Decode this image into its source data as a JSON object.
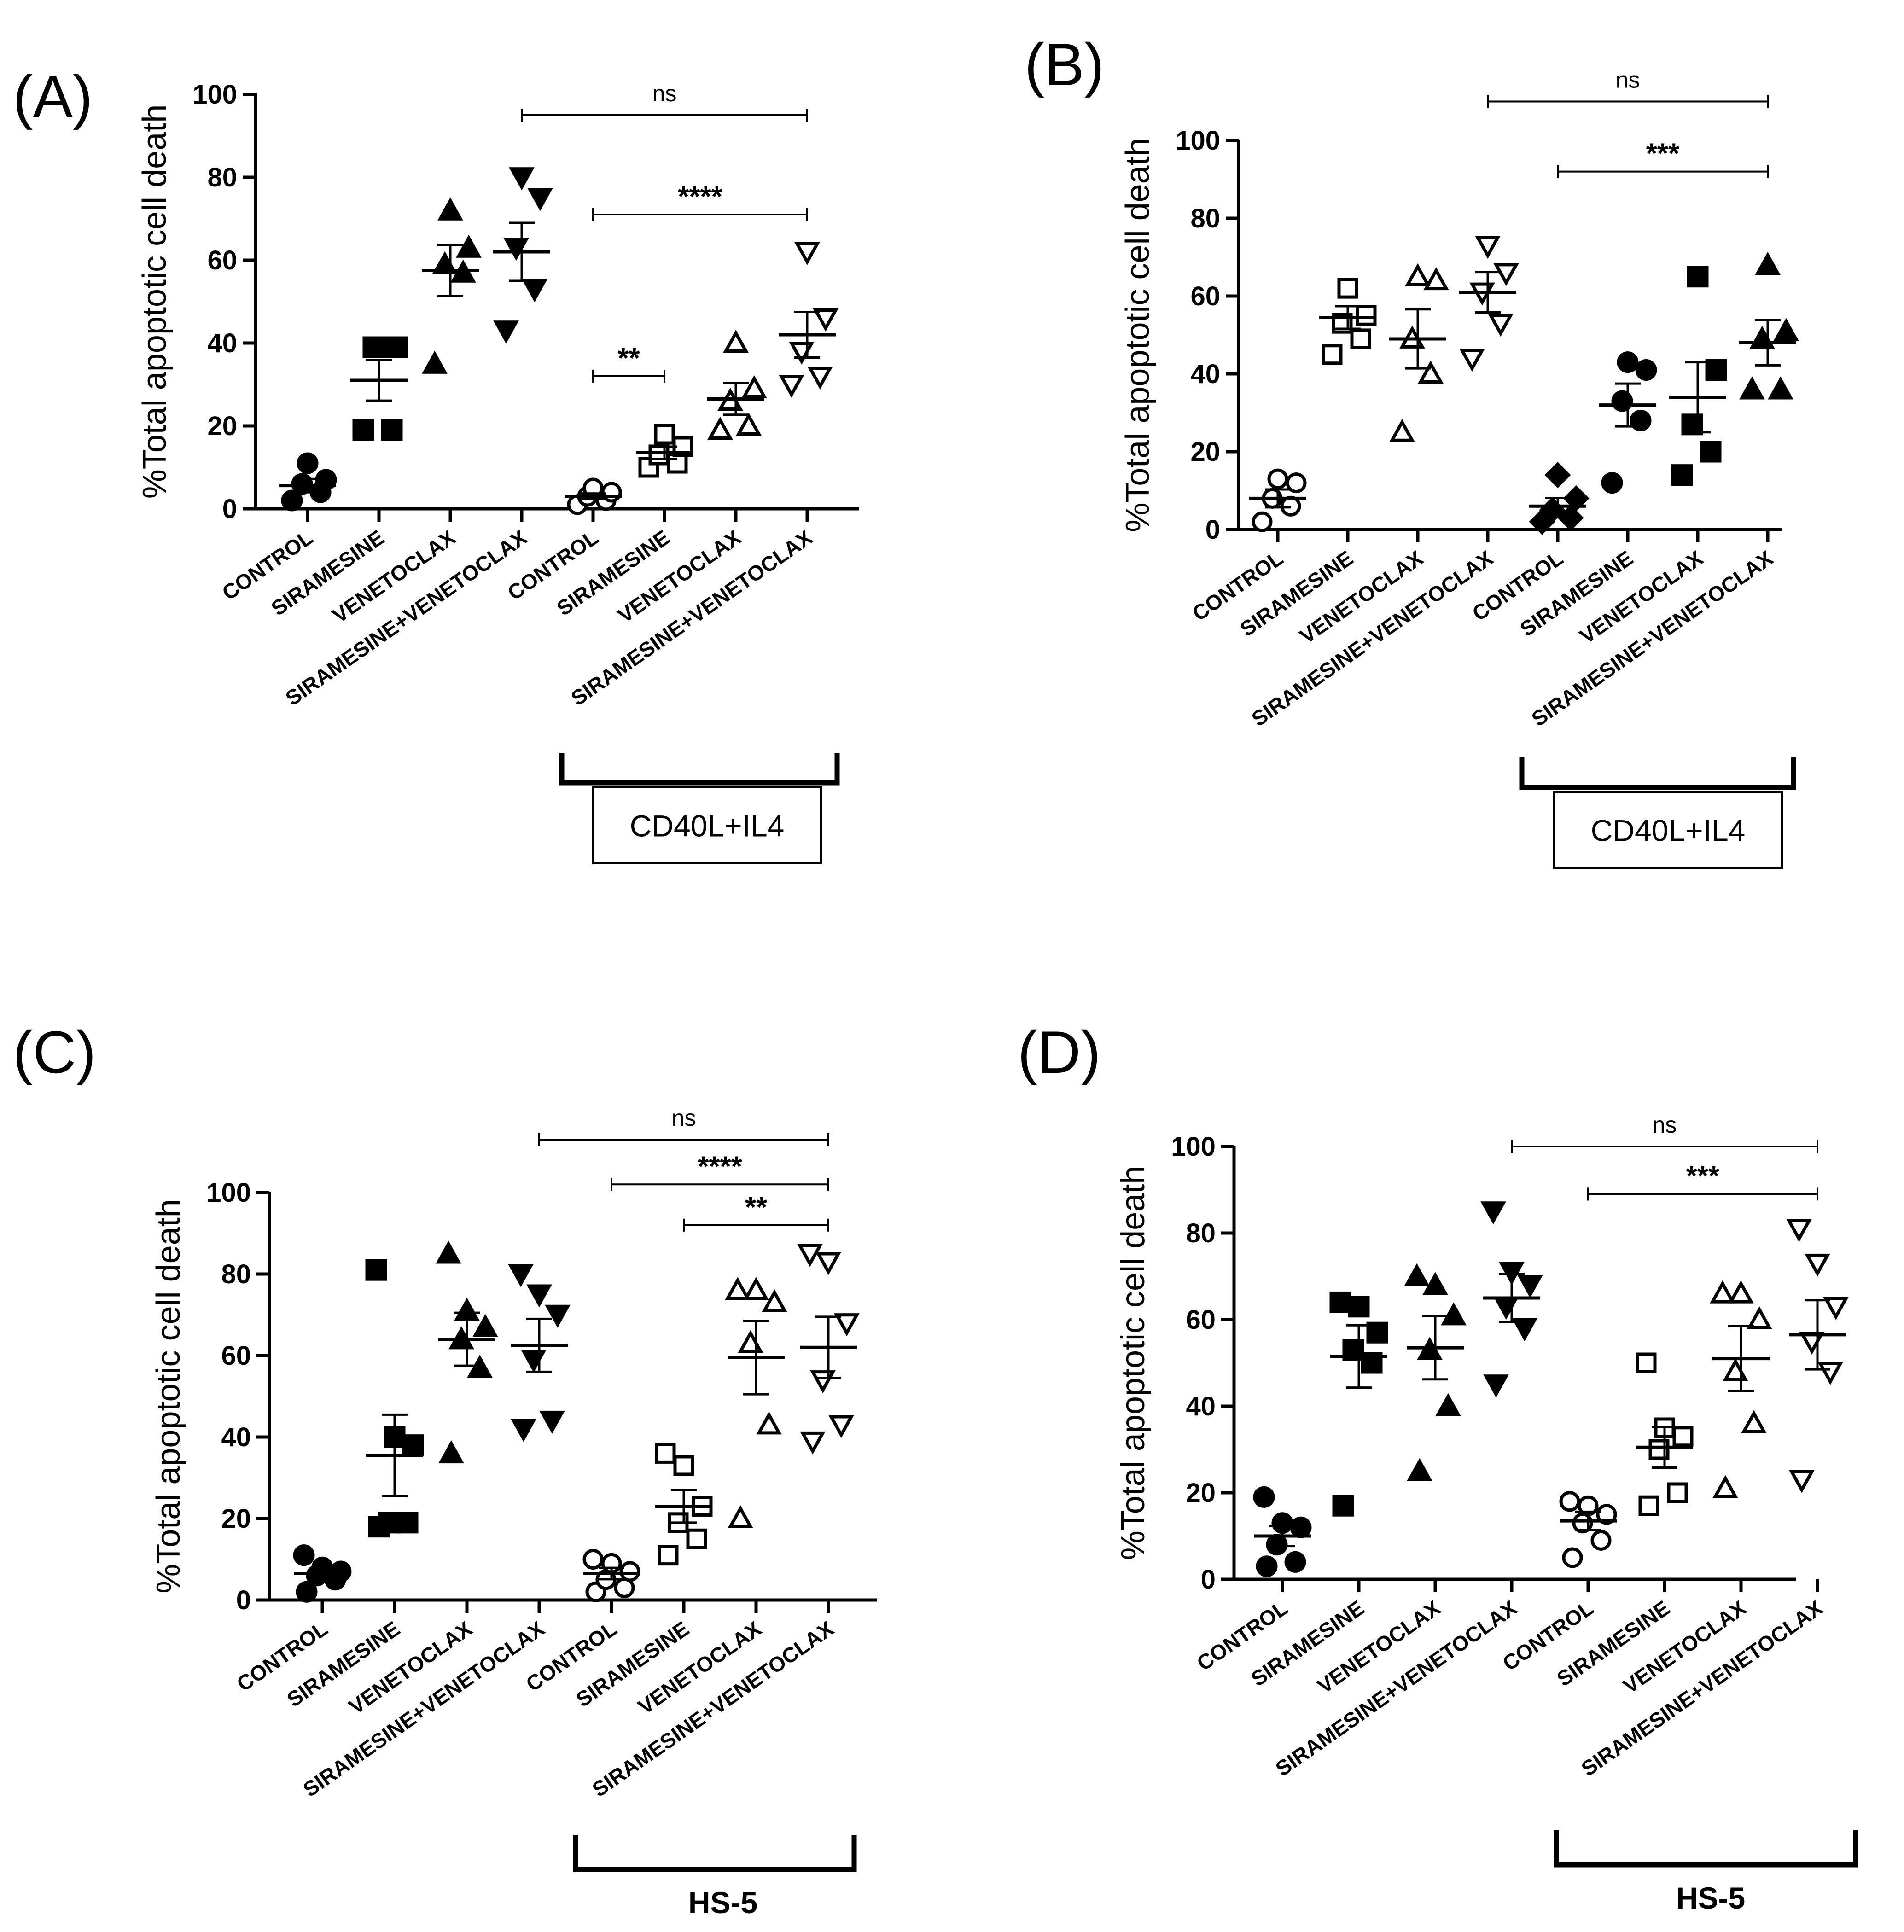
{
  "chart_data": [
    {
      "panel": "(A)",
      "type": "scatter",
      "ylabel": "%Total apoptotic cell death",
      "ylim": [
        0,
        100
      ],
      "yticks": [
        "0",
        "20",
        "40",
        "60",
        "80",
        "100"
      ],
      "categories": [
        "CONTROL",
        "SIRAMESINE",
        "VENETOCLAX",
        "SIRAMESINE+VENETOCLAX",
        "CONTROL",
        "SIRAMESINE",
        "VENETOCLAX",
        "SIRAMESINE+VENETOCLAX"
      ],
      "series": [
        {
          "marker": "circle-filled",
          "values": [
            2,
            4,
            6,
            7,
            11
          ],
          "mean": 5.6,
          "sem": 1.6
        },
        {
          "marker": "square-filled",
          "values": [
            19,
            19,
            39,
            39,
            39
          ],
          "mean": 31,
          "sem": 4.9
        },
        {
          "marker": "triangle-up-filled",
          "values": [
            35,
            57,
            59,
            63,
            72
          ],
          "mean": 57.5,
          "sem": 6.2
        },
        {
          "marker": "triangle-down-filled",
          "values": [
            43,
            53,
            63,
            75,
            80
          ],
          "mean": 62,
          "sem": 7
        },
        {
          "marker": "circle-open",
          "values": [
            1,
            2,
            3,
            4,
            5
          ],
          "mean": 3,
          "sem": 0.7
        },
        {
          "marker": "square-open",
          "values": [
            10,
            11,
            13,
            15,
            18
          ],
          "mean": 13.5,
          "sem": 1.5
        },
        {
          "marker": "triangle-up-open",
          "values": [
            19,
            20,
            26,
            29,
            40
          ],
          "mean": 26.5,
          "sem": 3.8
        },
        {
          "marker": "triangle-down-open",
          "values": [
            30,
            32,
            38,
            46,
            62
          ],
          "mean": 42,
          "sem": 5.5
        }
      ],
      "comparisons": [
        {
          "from": 3,
          "to": 7,
          "label": "ns",
          "y": 95
        },
        {
          "from": 4,
          "to": 7,
          "label": "****",
          "y": 71
        },
        {
          "from": 4,
          "to": 5,
          "label": "**",
          "y": 32
        }
      ],
      "group": {
        "label": "CD40L+IL4",
        "from": 4,
        "to": 7,
        "boxed": true
      }
    },
    {
      "panel": "(B)",
      "type": "scatter",
      "ylabel": "%Total apoptotic cell death",
      "ylim": [
        0,
        100
      ],
      "yticks": [
        "0",
        "20",
        "40",
        "60",
        "80",
        "100"
      ],
      "categories": [
        "CONTROL",
        "SIRAMESINE",
        "VENETOCLAX",
        "SIRAMESINE+VENETOCLAX",
        "CONTROL",
        "SIRAMESINE",
        "VENETOCLAX",
        "SIRAMESINE+VENETOCLAX"
      ],
      "series": [
        {
          "marker": "circle-open",
          "values": [
            2,
            6,
            8,
            12,
            13
          ],
          "mean": 8,
          "sem": 2.3
        },
        {
          "marker": "square-open",
          "values": [
            45,
            49,
            53,
            55,
            62
          ],
          "mean": 54.5,
          "sem": 2.9
        },
        {
          "marker": "triangle-up-open",
          "values": [
            25,
            40,
            49,
            64,
            65
          ],
          "mean": 49,
          "sem": 7.6
        },
        {
          "marker": "triangle-down-open",
          "values": [
            44,
            53,
            61,
            66,
            73
          ],
          "mean": 61,
          "sem": 5.2
        },
        {
          "marker": "diamond-filled",
          "values": [
            2,
            3,
            5,
            8,
            14
          ],
          "mean": 6,
          "sem": 2.1
        },
        {
          "marker": "circle-filled",
          "values": [
            12,
            28,
            33,
            41,
            43
          ],
          "mean": 32,
          "sem": 5.5
        },
        {
          "marker": "square-filled",
          "values": [
            14,
            20,
            27,
            41,
            65
          ],
          "mean": 34,
          "sem": 9
        },
        {
          "marker": "triangle-up-filled",
          "values": [
            36,
            36,
            49,
            51,
            68
          ],
          "mean": 48,
          "sem": 5.8
        }
      ],
      "comparisons": [
        {
          "from": 3,
          "to": 7,
          "label": "ns",
          "y": 110
        },
        {
          "from": 4,
          "to": 7,
          "label": "***",
          "y": 92
        }
      ],
      "group": {
        "label": "CD40L+IL4",
        "from": 4,
        "to": 7,
        "boxed": true
      }
    },
    {
      "panel": "(C)",
      "type": "scatter",
      "ylabel": "%Total apoptotic cell death",
      "ylim": [
        0,
        100
      ],
      "yticks": [
        "0",
        "20",
        "40",
        "60",
        "80",
        "100"
      ],
      "categories": [
        "CONTROL",
        "SIRAMESINE",
        "VENETOCLAX",
        "SIRAMESINE+VENETOCLAX",
        "CONTROL",
        "SIRAMESINE",
        "VENETOCLAX",
        "SIRAMESINE+VENETOCLAX"
      ],
      "series": [
        {
          "marker": "circle-filled",
          "values": [
            2,
            5,
            6,
            7,
            8,
            11
          ],
          "mean": 6.5,
          "sem": 1.2
        },
        {
          "marker": "square-filled",
          "values": [
            18,
            19,
            19,
            38,
            40,
            81
          ],
          "mean": 35.5,
          "sem": 10
        },
        {
          "marker": "triangle-up-filled",
          "values": [
            36,
            57,
            64,
            67,
            71,
            85
          ],
          "mean": 64,
          "sem": 6.5
        },
        {
          "marker": "triangle-down-filled",
          "values": [
            42,
            44,
            59,
            70,
            75,
            80
          ],
          "mean": 62.5,
          "sem": 6.5
        },
        {
          "marker": "circle-open",
          "values": [
            2,
            3,
            5,
            7,
            9,
            10
          ],
          "mean": 6.5,
          "sem": 1.4
        },
        {
          "marker": "square-open",
          "values": [
            11,
            15,
            19,
            23,
            33,
            36
          ],
          "mean": 23,
          "sem": 4
        },
        {
          "marker": "triangle-up-open",
          "values": [
            20,
            43,
            63,
            73,
            76,
            76
          ],
          "mean": 59.5,
          "sem": 9
        },
        {
          "marker": "triangle-down-open",
          "values": [
            39,
            43,
            54,
            68,
            83,
            85
          ],
          "mean": 62,
          "sem": 7.5
        }
      ],
      "comparisons": [
        {
          "from": 3,
          "to": 7,
          "label": "ns",
          "y": 113
        },
        {
          "from": 4,
          "to": 7,
          "label": "****",
          "y": 102
        },
        {
          "from": 5,
          "to": 7,
          "label": "**",
          "y": 92
        }
      ],
      "group": {
        "label": "HS-5",
        "from": 4,
        "to": 7,
        "boxed": false
      }
    },
    {
      "panel": "(D)",
      "type": "scatter",
      "ylabel": "%Total apoptotic cell death",
      "ylim": [
        0,
        100
      ],
      "yticks": [
        "0",
        "20",
        "40",
        "60",
        "80",
        "100"
      ],
      "categories": [
        "CONTROL",
        "SIRAMESINE",
        "VENETOCLAX",
        "SIRAMESINE+VENETOCLAX",
        "CONTROL",
        "SIRAMESINE",
        "VENETOCLAX",
        "SIRAMESINE+VENETOCLAX"
      ],
      "series": [
        {
          "marker": "circle-filled",
          "values": [
            3,
            4,
            8,
            12,
            13,
            19
          ],
          "mean": 10,
          "sem": 2.3
        },
        {
          "marker": "square-filled",
          "values": [
            17,
            50,
            53,
            57,
            63,
            64
          ],
          "mean": 51.5,
          "sem": 7.2
        },
        {
          "marker": "triangle-up-filled",
          "values": [
            25,
            40,
            53,
            61,
            68,
            70
          ],
          "mean": 53.5,
          "sem": 7.3
        },
        {
          "marker": "triangle-down-filled",
          "values": [
            45,
            58,
            63,
            68,
            71,
            85
          ],
          "mean": 65,
          "sem": 5.5
        },
        {
          "marker": "circle-open",
          "values": [
            5,
            9,
            13,
            15,
            17,
            18
          ],
          "mean": 13.5,
          "sem": 2.1
        },
        {
          "marker": "square-open",
          "values": [
            17,
            20,
            30,
            33,
            35,
            50
          ],
          "mean": 30.5,
          "sem": 4.7
        },
        {
          "marker": "triangle-up-open",
          "values": [
            21,
            36,
            48,
            60,
            66,
            66
          ],
          "mean": 51,
          "sem": 7.5
        },
        {
          "marker": "triangle-down-open",
          "values": [
            23,
            48,
            55,
            63,
            73,
            81
          ],
          "mean": 56.5,
          "sem": 8
        }
      ],
      "comparisons": [
        {
          "from": 3,
          "to": 7,
          "label": "ns",
          "y": 100
        },
        {
          "from": 4,
          "to": 7,
          "label": "***",
          "y": 89
        }
      ],
      "group": {
        "label": "HS-5",
        "from": 4,
        "to": 7,
        "boxed": false
      }
    }
  ]
}
